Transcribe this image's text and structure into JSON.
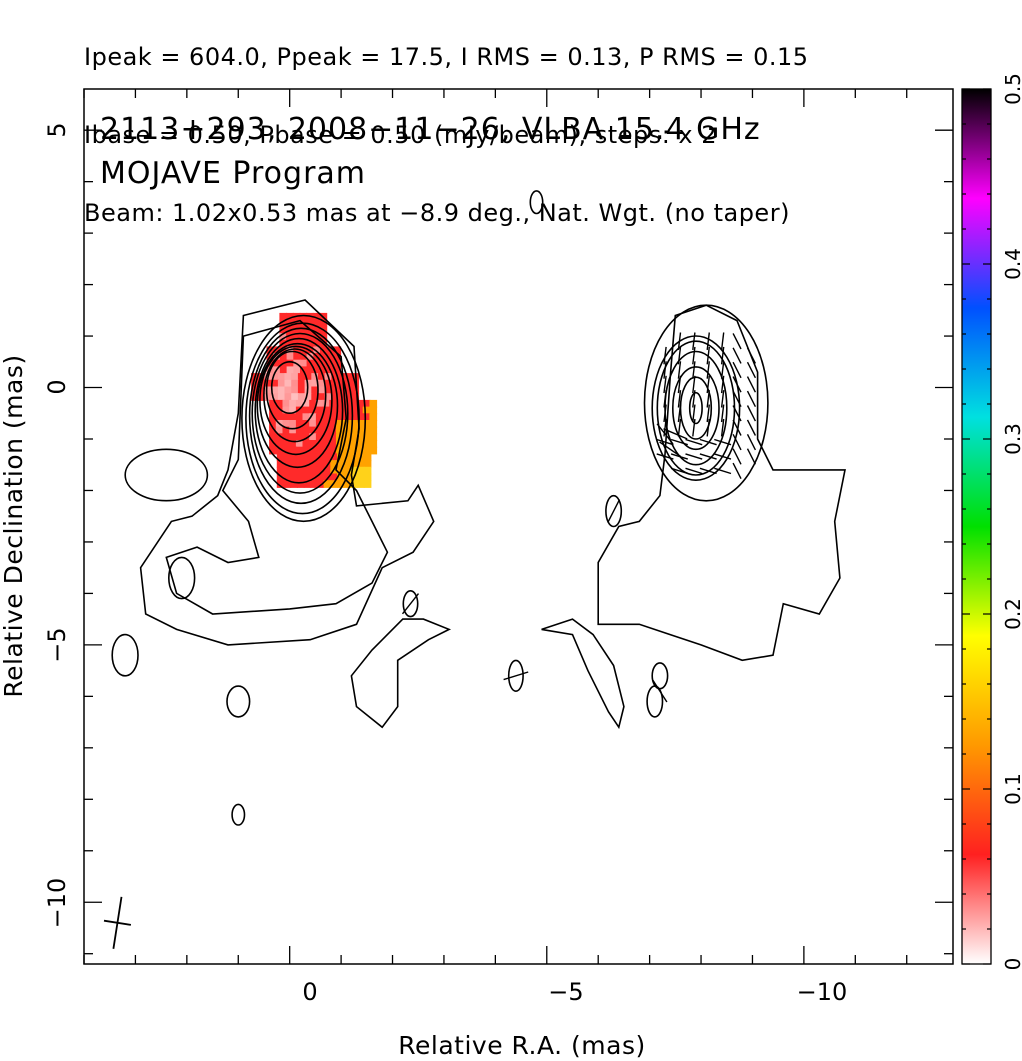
{
  "header_lines": [
    "Ipeak = 604.0, Ppeak = 17.5, I RMS = 0.13, P RMS = 0.15",
    "Ibase = 0.50, Pbase = 0.50 (mJy/beam), steps: x 2",
    "Beam: 1.02x0.53 mas at −8.9 deg., Nat. Wgt. (no taper)"
  ],
  "chart_data": {
    "type": "heatmap",
    "title_lines": [
      "2113+293, 2008−11−26, VLBA 15.4 GHz",
      "MOJAVE Program"
    ],
    "xlabel": "Relative R.A. (mas)",
    "ylabel": "Relative Declination (mas)",
    "xlim": [
      4.0,
      -12.9
    ],
    "ylim": [
      -11.2,
      5.8
    ],
    "x_ticks": [
      0,
      -5,
      -10
    ],
    "x_tick_labels": [
      "0",
      "−5",
      "−10"
    ],
    "y_ticks": [
      5,
      0,
      -5,
      -10
    ],
    "y_tick_labels": [
      "5",
      "0",
      "−5",
      "−10"
    ],
    "colorbar": {
      "range": [
        0,
        0.5
      ],
      "ticks": [
        0,
        0.1,
        0.2,
        0.3,
        0.4,
        0.5
      ],
      "tick_labels": [
        "0",
        "0.1",
        "0.2",
        "0.3",
        "0.4",
        "0.5"
      ],
      "colors": [
        "#ffffff",
        "#ff2020",
        "#ff9900",
        "#ffff00",
        "#00e000",
        "#00e0e0",
        "#0050ff",
        "#ff00ff",
        "#000000"
      ]
    },
    "panels": [
      {
        "name": "total-intensity",
        "core": [
          0.0,
          0.0
        ],
        "contour_levels_mJy": [
          0.5,
          1,
          2,
          4,
          8,
          16,
          32,
          64,
          128,
          256,
          512
        ],
        "color_overlay": "fractional polarization"
      },
      {
        "name": "polarized-intensity",
        "core": [
          -8.0,
          -0.3
        ],
        "evpa_ticks": true
      }
    ],
    "peak_I_mJy": 604.0,
    "peak_P_mJy": 17.5,
    "beam": {
      "major_mas": 1.02,
      "minor_mas": 0.53,
      "pa_deg": -8.9
    }
  }
}
